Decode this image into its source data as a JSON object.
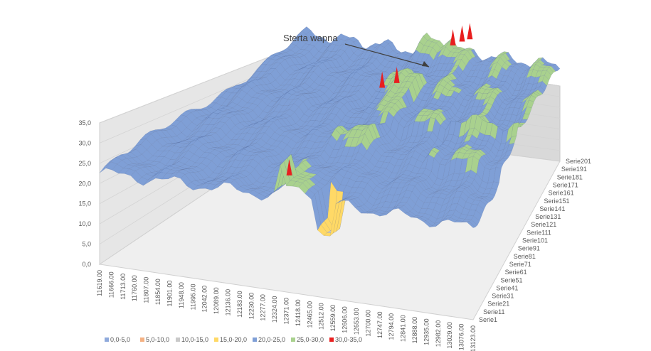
{
  "chart_data": {
    "type": "surface-3d",
    "annotation": "Sterta wapna",
    "z_axis": {
      "min": 0,
      "max": 35,
      "ticks": [
        "0,0",
        "5,0",
        "10,0",
        "15,0",
        "20,0",
        "25,0",
        "30,0",
        "35,0"
      ]
    },
    "x_axis": {
      "ticks": [
        "11619.00",
        "11666.00",
        "11713.00",
        "11760.00",
        "11807.00",
        "11854.00",
        "11901.00",
        "11948.00",
        "11995.00",
        "12042.00",
        "12089.00",
        "12136.00",
        "12183.00",
        "12230.00",
        "12277.00",
        "12324.00",
        "12371.00",
        "12418.00",
        "12465.00",
        "12512.00",
        "12559.00",
        "12606.00",
        "12653.00",
        "12700.00",
        "12747.00",
        "12794.00",
        "12841.00",
        "12888.00",
        "12935.00",
        "12982.00",
        "13029.00",
        "13076.00",
        "13123.00"
      ]
    },
    "series_axis": {
      "ticks": [
        "Serie1",
        "Serie11",
        "Serie21",
        "Serie31",
        "Serie41",
        "Serie51",
        "Serie61",
        "Serie71",
        "Serie81",
        "Serie91",
        "Serie101",
        "Serie111",
        "Serie121",
        "Serie131",
        "Serie141",
        "Serie151",
        "Serie161",
        "Serie171",
        "Serie181",
        "Serie191",
        "Serie201"
      ]
    },
    "legend": [
      {
        "label": "0,0-5,0",
        "color": "#8faadc"
      },
      {
        "label": "5,0-10,0",
        "color": "#f4b183"
      },
      {
        "label": "10,0-15,0",
        "color": "#c9c9c9"
      },
      {
        "label": "15,0-20,0",
        "color": "#ffd966"
      },
      {
        "label": "20,0-25,0",
        "color": "#7f9fd6"
      },
      {
        "label": "25,0-30,0",
        "color": "#a9d18e"
      },
      {
        "label": "30,0-35,0",
        "color": "#e81f1f"
      }
    ],
    "legend_placement": "bottom",
    "grid": true
  }
}
